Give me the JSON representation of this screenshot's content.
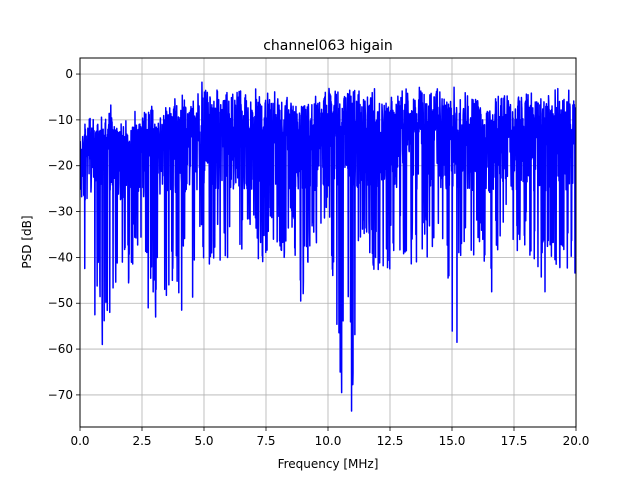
{
  "chart_data": {
    "type": "line",
    "title": "channel063 higain",
    "xlabel": "Frequency [MHz]",
    "ylabel": "PSD [dB]",
    "xlim": [
      0,
      20
    ],
    "ylim": [
      -77,
      3.5
    ],
    "xticks": [
      0,
      2.5,
      5,
      7.5,
      10,
      12.5,
      15,
      17.5,
      20
    ],
    "xtick_labels": [
      "0.0",
      "2.5",
      "5.0",
      "7.5",
      "10.0",
      "12.5",
      "15.0",
      "17.5",
      "20.0"
    ],
    "yticks": [
      0,
      -10,
      -20,
      -30,
      -40,
      -50,
      -60,
      -70
    ],
    "ytick_labels": [
      "0",
      "−10",
      "−20",
      "−30",
      "−40",
      "−50",
      "−60",
      "−70"
    ],
    "grid": true,
    "series": [
      {
        "color": "#0000ff",
        "x": [
          0.0,
          0.25,
          0.5,
          0.75,
          1.0,
          1.25,
          1.5,
          1.75,
          2.0,
          2.25,
          2.5,
          2.75,
          3.0,
          3.25,
          3.5,
          3.75,
          4.0,
          4.25,
          4.5,
          4.75,
          5.0,
          5.25,
          5.5,
          5.75,
          6.0,
          6.25,
          6.5,
          6.75,
          7.0,
          7.25,
          7.5,
          7.75,
          8.0,
          8.25,
          8.5,
          8.75,
          9.0,
          9.25,
          9.5,
          9.75,
          10.0,
          10.25,
          10.5,
          10.75,
          11.0,
          11.25,
          11.5,
          11.75,
          12.0,
          12.25,
          12.5,
          12.75,
          13.0,
          13.25,
          13.5,
          13.75,
          14.0,
          14.25,
          14.5,
          14.75,
          15.0,
          15.25,
          15.5,
          15.75,
          16.0,
          16.25,
          16.5,
          16.75,
          17.0,
          17.25,
          17.5,
          17.75,
          18.0,
          18.25,
          18.5,
          18.75,
          19.0,
          19.25,
          19.5,
          19.75,
          20.0
        ],
        "upper": [
          -12,
          -8,
          -9,
          -6,
          -10,
          -6,
          -9,
          -8,
          -9,
          -7,
          -8,
          -7,
          -6,
          -7,
          -6,
          -5,
          -4,
          -4,
          -3,
          -3,
          -1,
          -3,
          -3,
          -2,
          -3,
          -2,
          -1,
          -3,
          -2,
          -3,
          -2,
          -3,
          -1,
          -2,
          -3,
          -3,
          -2,
          -3,
          -3,
          -2,
          0,
          -2,
          -3,
          -2,
          -1,
          -2,
          -3,
          -2,
          -3,
          -2,
          -2,
          -3,
          -3,
          -2,
          -3,
          -1,
          -2,
          -3,
          -2,
          -3,
          -2,
          -3,
          -4,
          -3,
          -2,
          -3,
          -4,
          -3,
          -3,
          -2,
          -4,
          -3,
          -1,
          -3,
          -4,
          -3,
          -3,
          -2,
          -4,
          -3,
          -6
        ],
        "lower": [
          -36,
          -50,
          -52,
          -48,
          -59,
          -52,
          -45,
          -44,
          -46,
          -38,
          -36,
          -45,
          -51,
          -48,
          -53,
          -45,
          -48,
          -44,
          -52,
          -42,
          -40,
          -47,
          -41,
          -42,
          -42,
          -38,
          -38,
          -40,
          -38,
          -42,
          -40,
          -37,
          -39,
          -43,
          -38,
          -42,
          -49,
          -40,
          -37,
          -36,
          -34,
          -47,
          -69,
          -45,
          -73,
          -43,
          -39,
          -42,
          -45,
          -42,
          -43,
          -38,
          -41,
          -42,
          -42,
          -39,
          -40,
          -41,
          -40,
          -43,
          -59,
          -44,
          -38,
          -42,
          -39,
          -40,
          -47,
          -41,
          -37,
          -38,
          -41,
          -37,
          -38,
          -42,
          -48,
          -40,
          -45,
          -47,
          -45,
          -42,
          -44
        ],
        "dips": [
          [
            0.6,
            -52.5
          ],
          [
            0.9,
            -59
          ],
          [
            1.2,
            -52
          ],
          [
            2.75,
            -51
          ],
          [
            3.05,
            -53
          ],
          [
            4.1,
            -51.5
          ],
          [
            8.9,
            -49.5
          ],
          [
            10.55,
            -69.5
          ],
          [
            10.95,
            -73.5
          ],
          [
            15.2,
            -58.5
          ],
          [
            16.6,
            -47.5
          ],
          [
            18.75,
            -47.5
          ]
        ]
      }
    ]
  }
}
